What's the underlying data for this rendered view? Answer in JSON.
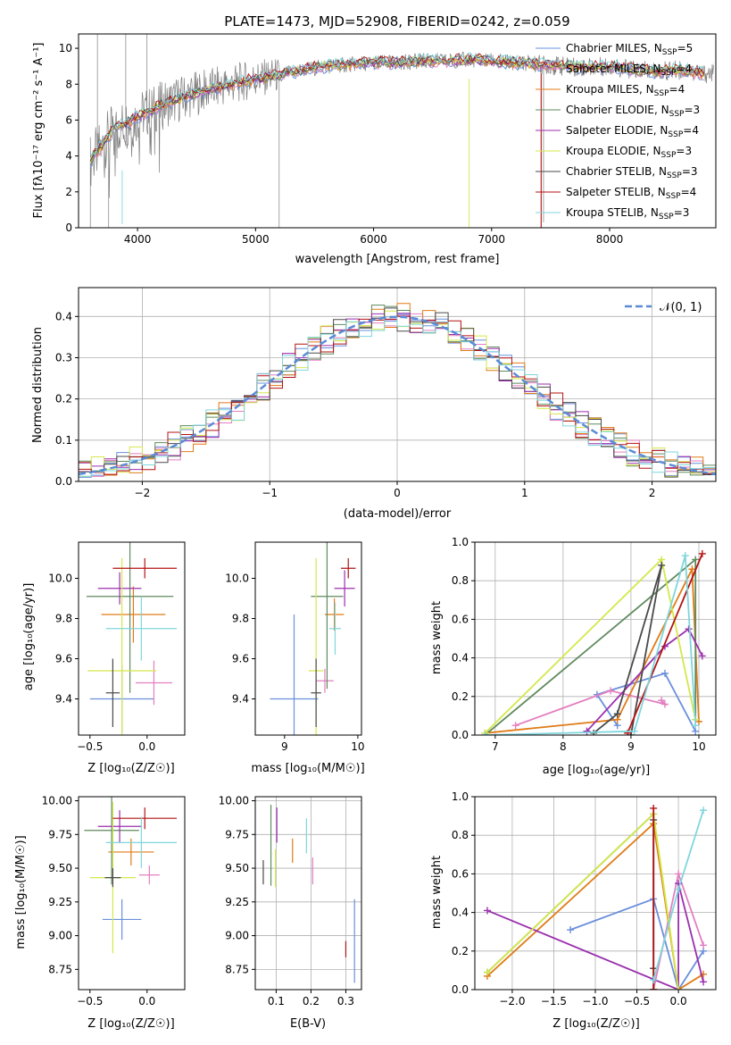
{
  "colors": {
    "chabrier_miles": "#6a8fdc",
    "salpeter_miles": "#e37fc0",
    "kroupa_miles": "#e07b17",
    "chabrier_elodie": "#5f8a5f",
    "salpeter_elodie": "#9b2fae",
    "kroupa_elodie": "#d4e84a",
    "chabrier_stelib": "#4a4a4a",
    "salpeter_stelib": "#b31313",
    "kroupa_stelib": "#7fd6dc",
    "data_gray": "#7f7f7f",
    "normal_curve": "#5b8bd6",
    "grid": "#b0b0b0"
  },
  "chart_data": [
    {
      "id": "spectrum",
      "type": "line",
      "title": "PLATE=1473, MJD=52908, FIBERID=0242, z=0.059",
      "xlabel": "wavelength [Angstrom, rest frame]",
      "ylabel": "Flux [fλ10⁻¹⁷ erg cm⁻² s⁻¹ A⁻¹]",
      "xlim": [
        3500,
        8900
      ],
      "ylim": [
        0,
        10.8
      ],
      "xticks": [
        "4000",
        "5000",
        "6000",
        "7000",
        "8000"
      ],
      "yticks": [
        "0",
        "2",
        "4",
        "6",
        "8",
        "10"
      ],
      "grid": false,
      "legend_position": "top-right",
      "series": [
        {
          "name": "Chabrier MILES, N_SSP=5",
          "key": "chabrier_miles"
        },
        {
          "name": "Salpeter MILES, N_SSP=4",
          "key": "salpeter_miles"
        },
        {
          "name": "Kroupa MILES, N_SSP=4",
          "key": "kroupa_miles"
        },
        {
          "name": "Chabrier ELODIE, N_SSP=3",
          "key": "chabrier_elodie"
        },
        {
          "name": "Salpeter ELODIE, N_SSP=4",
          "key": "salpeter_elodie"
        },
        {
          "name": "Kroupa ELODIE, N_SSP=3",
          "key": "kroupa_elodie"
        },
        {
          "name": "Chabrier STELIB, N_SSP=3",
          "key": "chabrier_stelib"
        },
        {
          "name": "Salpeter STELIB, N_SSP=4",
          "key": "salpeter_stelib"
        },
        {
          "name": "Kroupa STELIB, N_SSP=3",
          "key": "kroupa_stelib"
        }
      ],
      "continuum": {
        "x": [
          3600,
          3700,
          3800,
          3900,
          4000,
          4200,
          4400,
          4600,
          4800,
          5000,
          5200,
          5400,
          5600,
          5800,
          6000,
          6200,
          6400,
          6600,
          6800,
          7000,
          7200,
          7400,
          7600,
          7800,
          8000,
          8200,
          8400,
          8600,
          8800
        ],
        "y": [
          3.7,
          4.6,
          5.5,
          5.8,
          6.2,
          6.8,
          7.3,
          7.7,
          8.0,
          8.3,
          8.5,
          8.8,
          9.0,
          9.1,
          9.2,
          9.2,
          9.3,
          9.3,
          9.35,
          9.3,
          9.2,
          9.1,
          9.0,
          8.95,
          9.0,
          8.8,
          8.7,
          8.8,
          8.6
        ]
      }
    },
    {
      "id": "residuals",
      "type": "histogram",
      "xlabel": "(data-model)/error",
      "ylabel": "Normed distribution",
      "xlim": [
        -2.5,
        2.5
      ],
      "ylim": [
        0,
        0.47
      ],
      "xticks": [
        "−2",
        "−1",
        "0",
        "1",
        "2"
      ],
      "yticks": [
        "0.0",
        "0.1",
        "0.2",
        "0.3",
        "0.4"
      ],
      "grid": true,
      "legend_position": "top-right",
      "legend": "𝒩(0, 1)",
      "bin_width": 0.1
    },
    {
      "id": "age_vs_z",
      "type": "errorbar",
      "xlabel": "Z [log₁₀(Z/Z☉)]",
      "ylabel": "age  [log₁₀(age/yr)]",
      "xlim": [
        -0.6,
        0.33
      ],
      "ylim": [
        9.22,
        10.18
      ],
      "xticks": [
        -0.5,
        0.0
      ],
      "xticklabels": [
        "−0.5",
        "0.0"
      ],
      "yticks": [
        9.4,
        9.6,
        9.8,
        10.0
      ],
      "yticklabels": [
        "9.4",
        "9.6",
        "9.8",
        "10.0"
      ],
      "points": [
        {
          "key": "chabrier_miles",
          "x": -0.22,
          "xerr": 0.28,
          "y": 9.4,
          "yerr": 0.17
        },
        {
          "key": "salpeter_miles",
          "x": 0.06,
          "xerr": 0.16,
          "y": 9.48,
          "yerr": 0.11
        },
        {
          "key": "kroupa_miles",
          "x": -0.12,
          "xerr": 0.28,
          "y": 9.82,
          "yerr": 0.14
        },
        {
          "key": "chabrier_elodie",
          "x": -0.15,
          "xerr": 0.38,
          "y": 9.91,
          "yerr": 0.48
        },
        {
          "key": "salpeter_elodie",
          "x": -0.24,
          "xerr": 0.19,
          "y": 9.95,
          "yerr": 0.08
        },
        {
          "key": "kroupa_elodie",
          "x": -0.22,
          "xerr": 0.3,
          "y": 9.54,
          "yerr": 0.56
        },
        {
          "key": "chabrier_stelib",
          "x": -0.3,
          "xerr": 0.06,
          "y": 9.43,
          "yerr": 0.17
        },
        {
          "key": "salpeter_stelib",
          "x": -0.02,
          "xerr": 0.28,
          "y": 10.05,
          "yerr": 0.05
        },
        {
          "key": "kroupa_stelib",
          "x": -0.05,
          "xerr": 0.31,
          "y": 9.75,
          "yerr": 0.16
        }
      ]
    },
    {
      "id": "age_vs_mass",
      "type": "errorbar",
      "xlabel": "mass [log₁₀(M/M☉)]",
      "ylabel": "",
      "xlim": [
        8.6,
        10.05
      ],
      "ylim": [
        9.22,
        10.18
      ],
      "xticks": [
        9,
        10
      ],
      "xticklabels": [
        "9",
        "10"
      ],
      "yticks": [
        9.4,
        9.6,
        9.8,
        10.0
      ],
      "yticklabels": [
        "9.4",
        "9.6",
        "9.8",
        "10.0"
      ],
      "points": [
        {
          "key": "chabrier_miles",
          "x": 9.13,
          "xerr": 0.33,
          "y": 9.4,
          "yerr": 0.42
        },
        {
          "key": "salpeter_miles",
          "x": 9.55,
          "xerr": 0.12,
          "y": 9.49,
          "yerr": 0.06
        },
        {
          "key": "kroupa_miles",
          "x": 9.68,
          "xerr": 0.13,
          "y": 9.82,
          "yerr": 0.08
        },
        {
          "key": "chabrier_elodie",
          "x": 9.58,
          "xerr": 0.22,
          "y": 9.91,
          "yerr": 0.46
        },
        {
          "key": "salpeter_elodie",
          "x": 9.82,
          "xerr": 0.14,
          "y": 9.95,
          "yerr": 0.09
        },
        {
          "key": "kroupa_elodie",
          "x": 9.43,
          "xerr": 0.1,
          "y": 9.54,
          "yerr": 0.56
        },
        {
          "key": "chabrier_stelib",
          "x": 9.43,
          "xerr": 0.07,
          "y": 9.43,
          "yerr": 0.17
        },
        {
          "key": "salpeter_stelib",
          "x": 9.87,
          "xerr": 0.1,
          "y": 10.05,
          "yerr": 0.05
        },
        {
          "key": "kroupa_stelib",
          "x": 9.69,
          "xerr": 0.08,
          "y": 9.75,
          "yerr": 0.13
        }
      ]
    },
    {
      "id": "weight_vs_age",
      "type": "line",
      "xlabel": "age  [log₁₀(age/yr)]",
      "ylabel": "mass weight",
      "xlim": [
        6.7,
        10.25
      ],
      "ylim": [
        0,
        1.0
      ],
      "xticks": [
        7,
        8,
        9,
        10
      ],
      "xticklabels": [
        "7",
        "8",
        "9",
        "10"
      ],
      "yticks": [
        0.0,
        0.2,
        0.4,
        0.6,
        0.8,
        1.0
      ],
      "yticklabels": [
        "0.0",
        "0.2",
        "0.4",
        "0.6",
        "0.8",
        "1.0"
      ],
      "series": [
        {
          "key": "chabrier_miles",
          "x": [
            8.8,
            8.5,
            9.5,
            9.95
          ],
          "y": [
            0.05,
            0.21,
            0.32,
            0.02
          ]
        },
        {
          "key": "salpeter_miles",
          "x": [
            7.3,
            8.7,
            9.5,
            9.45
          ],
          "y": [
            0.05,
            0.23,
            0.16,
            0.18
          ]
        },
        {
          "key": "kroupa_miles",
          "x": [
            6.85,
            8.8,
            9.9,
            10.0
          ],
          "y": [
            0.01,
            0.08,
            0.86,
            0.07
          ]
        },
        {
          "key": "chabrier_elodie",
          "x": [
            6.85,
            9.95,
            9.95
          ],
          "y": [
            0.0,
            0.91,
            0.08
          ]
        },
        {
          "key": "salpeter_elodie",
          "x": [
            8.35,
            9.5,
            9.85,
            10.05
          ],
          "y": [
            0.02,
            0.46,
            0.55,
            0.41
          ]
        },
        {
          "key": "kroupa_elodie",
          "x": [
            6.85,
            9.45,
            9.95
          ],
          "y": [
            0.01,
            0.91,
            0.08
          ]
        },
        {
          "key": "chabrier_stelib",
          "x": [
            8.45,
            8.8,
            9.45,
            9.0
          ],
          "y": [
            0.01,
            0.11,
            0.88,
            0.0
          ]
        },
        {
          "key": "salpeter_stelib",
          "x": [
            8.95,
            10.05
          ],
          "y": [
            0.01,
            0.94
          ]
        },
        {
          "key": "kroupa_stelib",
          "x": [
            6.85,
            9.05,
            9.8,
            9.95
          ],
          "y": [
            0.0,
            0.02,
            0.93,
            0.05
          ]
        }
      ]
    },
    {
      "id": "mass_vs_z",
      "type": "errorbar",
      "xlabel": "Z [log₁₀(Z/Z☉)]",
      "ylabel": "mass [log₁₀(M/M☉)]",
      "xlim": [
        -0.6,
        0.33
      ],
      "ylim": [
        8.6,
        10.03
      ],
      "xticks": [
        -0.5,
        0.0
      ],
      "xticklabels": [
        "−0.5",
        "0.0"
      ],
      "yticks": [
        8.75,
        9.0,
        9.25,
        9.5,
        9.75,
        10.0
      ],
      "yticklabels": [
        "8.75",
        "9.00",
        "9.25",
        "9.50",
        "9.75",
        "10.00"
      ],
      "points": [
        {
          "key": "chabrier_miles",
          "x": -0.22,
          "xerr": 0.17,
          "y": 9.12,
          "yerr": 0.15
        },
        {
          "key": "salpeter_miles",
          "x": 0.02,
          "xerr": 0.09,
          "y": 9.45,
          "yerr": 0.07
        },
        {
          "key": "kroupa_miles",
          "x": -0.14,
          "xerr": 0.2,
          "y": 9.62,
          "yerr": 0.1
        },
        {
          "key": "chabrier_elodie",
          "x": -0.31,
          "xerr": 0.24,
          "y": 9.78,
          "yerr": 0.4
        },
        {
          "key": "salpeter_elodie",
          "x": -0.24,
          "xerr": 0.19,
          "y": 9.81,
          "yerr": 0.12
        },
        {
          "key": "kroupa_elodie",
          "x": -0.3,
          "xerr": 0.2,
          "y": 9.43,
          "yerr": 0.56
        },
        {
          "key": "chabrier_stelib",
          "x": -0.3,
          "xerr": 0.07,
          "y": 9.43,
          "yerr": 0.07
        },
        {
          "key": "salpeter_stelib",
          "x": -0.02,
          "xerr": 0.28,
          "y": 9.87,
          "yerr": 0.08
        },
        {
          "key": "kroupa_stelib",
          "x": -0.05,
          "xerr": 0.31,
          "y": 9.69,
          "yerr": 0.19
        }
      ]
    },
    {
      "id": "mass_vs_ebv",
      "type": "errorbar",
      "xlabel": "E(B-V)",
      "ylabel": "",
      "xlim": [
        0.04,
        0.345
      ],
      "ylim": [
        8.6,
        10.03
      ],
      "xticks": [
        0.1,
        0.2,
        0.3
      ],
      "xticklabels": [
        "0.1",
        "0.2",
        "0.3"
      ],
      "yticks": [
        8.75,
        9.0,
        9.25,
        9.5,
        9.75,
        10.0
      ],
      "yticklabels": [
        "8.75",
        "9.00",
        "9.25",
        "9.50",
        "9.75",
        "10.00"
      ],
      "points": [
        {
          "key": "chabrier_miles",
          "x": 0.325,
          "xerr": 0.0,
          "y": 8.96,
          "yerr": 0.31
        },
        {
          "key": "salpeter_miles",
          "x": 0.205,
          "xerr": 0.0,
          "y": 9.48,
          "yerr": 0.1
        },
        {
          "key": "kroupa_miles",
          "x": 0.147,
          "xerr": 0.0,
          "y": 9.63,
          "yerr": 0.09
        },
        {
          "key": "chabrier_elodie",
          "x": 0.085,
          "xerr": 0.0,
          "y": 9.67,
          "yerr": 0.3
        },
        {
          "key": "salpeter_elodie",
          "x": 0.102,
          "xerr": 0.0,
          "y": 9.82,
          "yerr": 0.13
        },
        {
          "key": "kroupa_elodie",
          "x": 0.098,
          "xerr": 0.0,
          "y": 9.5,
          "yerr": 0.14
        },
        {
          "key": "chabrier_stelib",
          "x": 0.063,
          "xerr": 0.0,
          "y": 9.47,
          "yerr": 0.09
        },
        {
          "key": "salpeter_stelib",
          "x": 0.3,
          "xerr": 0.0,
          "y": 8.9,
          "yerr": 0.06
        },
        {
          "key": "kroupa_stelib",
          "x": 0.187,
          "xerr": 0.0,
          "y": 9.74,
          "yerr": 0.13
        }
      ]
    },
    {
      "id": "weight_vs_z",
      "type": "line",
      "xlabel": "Z [log₁₀(Z/Z☉)]",
      "ylabel": "mass weight",
      "xlim": [
        -2.45,
        0.45
      ],
      "ylim": [
        0,
        1.0
      ],
      "xticks": [
        -2.0,
        -1.5,
        -1.0,
        -0.5,
        0.0
      ],
      "xticklabels": [
        "−2.0",
        "−1.5",
        "−1.0",
        "−0.5",
        "0.0"
      ],
      "yticks": [
        0.0,
        0.2,
        0.4,
        0.6,
        0.8,
        1.0
      ],
      "yticklabels": [
        "0.0",
        "0.2",
        "0.4",
        "0.6",
        "0.8",
        "1.0"
      ],
      "series": [
        {
          "key": "chabrier_miles",
          "x": [
            -1.3,
            -0.3,
            0.0,
            0.3
          ],
          "y": [
            0.31,
            0.47,
            0.0,
            0.2
          ]
        },
        {
          "key": "salpeter_miles",
          "x": [
            -0.3,
            0.0,
            0.3
          ],
          "y": [
            0.0,
            0.6,
            0.23
          ]
        },
        {
          "key": "kroupa_miles",
          "x": [
            -2.3,
            -0.3,
            0.0,
            0.3
          ],
          "y": [
            0.07,
            0.86,
            0.0,
            0.08
          ]
        },
        {
          "key": "chabrier_elodie",
          "x": [
            -2.3,
            -0.3
          ],
          "y": [
            0.09,
            0.91
          ]
        },
        {
          "key": "salpeter_elodie",
          "x": [
            -2.3,
            0.0,
            0.0,
            0.3
          ],
          "y": [
            0.41,
            0.0,
            0.55,
            0.04
          ]
        },
        {
          "key": "kroupa_elodie",
          "x": [
            -2.3,
            -0.3,
            0.0
          ],
          "y": [
            0.09,
            0.91,
            0.0
          ]
        },
        {
          "key": "chabrier_stelib",
          "x": [
            -0.3,
            -0.3,
            -0.3
          ],
          "y": [
            0.0,
            0.11,
            0.88
          ]
        },
        {
          "key": "salpeter_stelib",
          "x": [
            -0.3,
            -0.3
          ],
          "y": [
            0.0,
            0.94
          ]
        },
        {
          "key": "kroupa_stelib",
          "x": [
            -0.3,
            0.0,
            0.3
          ],
          "y": [
            0.05,
            0.52,
            0.93
          ]
        }
      ]
    }
  ]
}
